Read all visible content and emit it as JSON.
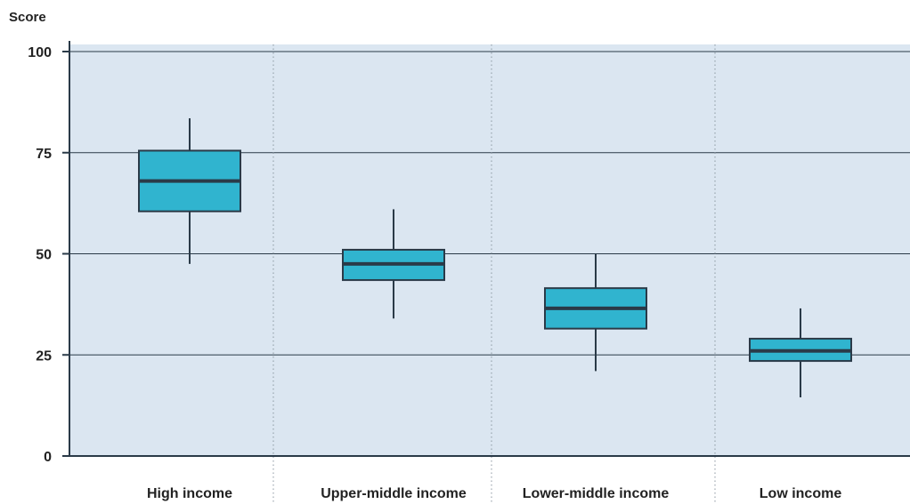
{
  "chart_data": {
    "type": "box",
    "ylabel": "Score",
    "ylim": [
      0,
      100
    ],
    "yticks": [
      0,
      25,
      50,
      75,
      100
    ],
    "grid": true,
    "categories": [
      "High income",
      "Upper-middle income",
      "Lower-middle income",
      "Low income"
    ],
    "boxes": [
      {
        "category": "High income",
        "min": 47.5,
        "q1": 60.5,
        "median": 68.0,
        "q3": 75.5,
        "max": 83.5
      },
      {
        "category": "Upper-middle income",
        "min": 34.0,
        "q1": 43.5,
        "median": 47.5,
        "q3": 51.0,
        "max": 61.0
      },
      {
        "category": "Lower-middle income",
        "min": 21.0,
        "q1": 31.5,
        "median": 36.5,
        "q3": 41.5,
        "max": 50.0
      },
      {
        "category": "Low income",
        "min": 14.5,
        "q1": 23.5,
        "median": 26.0,
        "q3": 29.0,
        "max": 36.5
      }
    ],
    "colors": {
      "plot_background": "#dbe6f1",
      "box_fill": "#30b4cf",
      "box_stroke": "#2a3a48",
      "median": "#2a3a48",
      "gridline": "#2a3a48",
      "separator": "#8a96a0",
      "axis": "#2a3a48"
    }
  }
}
